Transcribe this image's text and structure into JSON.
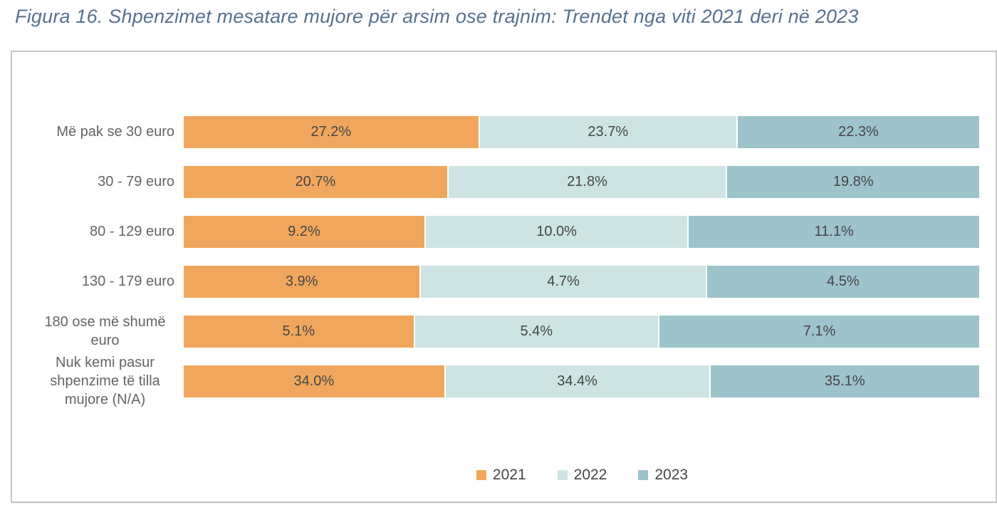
{
  "page": {
    "title": "Figura 16. Shpenzimet mesatare mujore për arsim ose trajnim: Trendet nga viti 2021 deri në 2023"
  },
  "colors": {
    "series_2021": "#F0A75D",
    "series_2022": "#CDE4E3",
    "series_2023": "#9DC3CB",
    "title_text": "#56718F",
    "category_text": "#646464",
    "value_text": "#464646",
    "frame_border": "#C6C6C6",
    "background": "#FFFFFF"
  },
  "chart_data": {
    "type": "bar",
    "subtype": "horizontal-stacked-normalized",
    "title": "Figura 16. Shpenzimet mesatare mujore për arsim ose trajnim: Trendet nga viti 2021 deri në 2023",
    "categories": [
      "Më pak se 30 euro",
      "30 - 79 euro",
      "80 - 129 euro",
      "130 - 179 euro",
      "180 ose më shumë euro",
      "Nuk kemi pasur shpenzime të tilla mujore (N/A)"
    ],
    "series": [
      {
        "name": "2021",
        "color": "#F0A75D",
        "values": [
          27.2,
          20.7,
          9.2,
          3.9,
          5.1,
          34.0
        ]
      },
      {
        "name": "2022",
        "color": "#CDE4E3",
        "values": [
          23.7,
          21.8,
          10.0,
          4.7,
          5.4,
          34.4
        ]
      },
      {
        "name": "2023",
        "color": "#9DC3CB",
        "values": [
          22.3,
          19.8,
          11.1,
          4.5,
          7.1,
          35.1
        ]
      }
    ],
    "value_suffix": "%",
    "value_decimals": 1,
    "legend_position": "bottom",
    "legend_entries": [
      "2021",
      "2022",
      "2023"
    ],
    "grid": false,
    "axis_labels_visible": false
  }
}
